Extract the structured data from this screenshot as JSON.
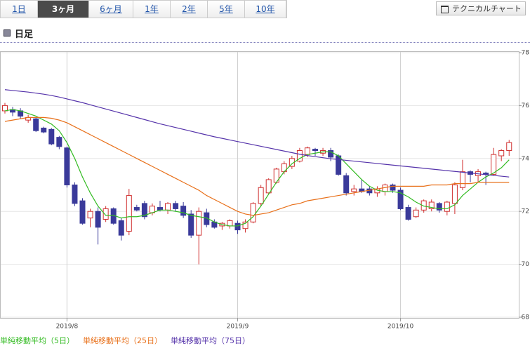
{
  "tabs": [
    "1日",
    "3ヶ月",
    "6ヶ月",
    "1年",
    "2年",
    "5年",
    "10年"
  ],
  "active_tab": 1,
  "button": "テクニカルチャート",
  "heading": "日足",
  "chart_data": {
    "type": "candlestick",
    "categories": [
      null,
      null,
      null,
      null,
      null,
      null,
      null,
      null,
      "2019/8",
      null,
      null,
      null,
      null,
      null,
      null,
      null,
      null,
      null,
      null,
      null,
      null,
      null,
      null,
      null,
      null,
      null,
      null,
      null,
      null,
      null,
      "2019/9",
      null,
      null,
      null,
      null,
      null,
      null,
      null,
      null,
      null,
      null,
      null,
      null,
      null,
      null,
      null,
      null,
      null,
      null,
      null,
      null,
      "2019/10",
      null,
      null,
      null,
      null,
      null,
      null,
      null,
      null,
      null,
      null,
      null,
      null,
      null,
      null
    ],
    "open": [
      75.8,
      75.85,
      75.8,
      75.45,
      75.5,
      75.15,
      75.1,
      74.8,
      74.4,
      73.0,
      72.4,
      71.75,
      72.0,
      71.7,
      72.1,
      71.65,
      71.25,
      72.15,
      72.3,
      71.95,
      72.15,
      72.05,
      72.3,
      72.2,
      71.9,
      71.1,
      71.95,
      71.6,
      71.45,
      71.45,
      71.55,
      71.35,
      71.6,
      72.3,
      72.7,
      73.1,
      73.5,
      73.7,
      73.9,
      74.15,
      74.35,
      74.2,
      74.3,
      74.1,
      73.35,
      72.75,
      72.85,
      72.85,
      72.7,
      72.75,
      73.0,
      72.8,
      72.15,
      71.8,
      72.05,
      72.1,
      72.3,
      72.0,
      72.3,
      72.9,
      73.5,
      73.35,
      73.45,
      73.4,
      74.1,
      74.3
    ],
    "high": [
      76.1,
      75.95,
      75.9,
      75.65,
      75.55,
      75.2,
      75.15,
      74.85,
      74.45,
      73.1,
      72.5,
      72.1,
      72.15,
      72.2,
      72.15,
      71.75,
      72.85,
      72.25,
      72.4,
      72.3,
      72.4,
      72.35,
      72.4,
      72.35,
      72.05,
      72.15,
      72.1,
      71.7,
      71.6,
      71.7,
      71.65,
      71.7,
      72.35,
      73.0,
      73.25,
      73.65,
      73.9,
      74.1,
      74.4,
      74.45,
      74.4,
      74.4,
      74.4,
      74.15,
      73.45,
      73.0,
      73.2,
      72.95,
      72.95,
      73.05,
      73.05,
      72.9,
      72.25,
      72.15,
      72.45,
      72.45,
      72.35,
      72.4,
      73.1,
      73.95,
      73.55,
      73.6,
      73.5,
      74.4,
      74.35,
      74.7
    ],
    "low": [
      75.7,
      75.6,
      75.5,
      75.35,
      75.0,
      74.95,
      74.5,
      74.35,
      72.9,
      72.2,
      71.5,
      71.4,
      70.75,
      71.6,
      71.5,
      70.9,
      71.1,
      72.0,
      71.7,
      71.85,
      72.0,
      71.9,
      72.0,
      71.75,
      71.0,
      70.0,
      71.4,
      71.35,
      71.3,
      71.35,
      71.15,
      71.2,
      71.55,
      72.2,
      72.65,
      73.05,
      73.4,
      73.6,
      73.85,
      74.05,
      74.1,
      74.1,
      73.9,
      73.35,
      72.6,
      72.6,
      72.7,
      72.6,
      72.55,
      72.6,
      72.7,
      72.05,
      71.65,
      71.75,
      71.95,
      72.0,
      71.95,
      71.85,
      71.9,
      72.8,
      73.1,
      73.1,
      73.0,
      73.35,
      73.9,
      74.1
    ],
    "close": [
      76.0,
      75.75,
      75.6,
      75.55,
      75.05,
      75.0,
      74.55,
      74.45,
      73.0,
      72.3,
      71.55,
      72.0,
      71.4,
      72.1,
      71.55,
      71.1,
      72.6,
      72.05,
      71.8,
      72.2,
      72.05,
      72.3,
      72.1,
      71.85,
      71.1,
      72.0,
      71.5,
      71.4,
      71.55,
      71.65,
      71.3,
      71.6,
      72.3,
      72.9,
      73.2,
      73.6,
      73.8,
      74.0,
      74.3,
      74.4,
      74.3,
      74.3,
      74.05,
      73.4,
      72.7,
      72.85,
      72.75,
      72.7,
      72.85,
      73.0,
      72.8,
      72.1,
      71.7,
      72.05,
      72.4,
      72.35,
      72.05,
      72.35,
      73.0,
      73.5,
      73.4,
      73.5,
      73.4,
      74.15,
      74.3,
      74.6
    ],
    "up_color": "#d03030",
    "down_color": "#3a3a9a",
    "series": [
      {
        "name": "単純移動平均（5日）",
        "color": "#33bb22",
        "values": [
          75.8,
          75.85,
          75.8,
          75.7,
          75.6,
          75.45,
          75.3,
          75.05,
          74.6,
          74.0,
          73.3,
          72.7,
          72.2,
          71.85,
          71.85,
          71.75,
          71.8,
          71.8,
          71.85,
          71.95,
          72.05,
          72.05,
          72.0,
          71.95,
          71.85,
          71.8,
          71.75,
          71.6,
          71.5,
          71.45,
          71.45,
          71.55,
          71.8,
          72.2,
          72.65,
          73.1,
          73.5,
          73.8,
          74.0,
          74.15,
          74.2,
          74.25,
          74.25,
          74.1,
          73.8,
          73.5,
          73.2,
          72.95,
          72.8,
          72.75,
          72.75,
          72.7,
          72.55,
          72.35,
          72.2,
          72.15,
          72.1,
          72.1,
          72.25,
          72.6,
          72.85,
          73.1,
          73.3,
          73.45,
          73.65,
          73.95
        ]
      },
      {
        "name": "単純移動平均（25日）",
        "color": "#e8701a",
        "values": [
          75.4,
          75.45,
          75.5,
          75.55,
          75.55,
          75.55,
          75.52,
          75.45,
          75.35,
          75.2,
          75.05,
          74.9,
          74.75,
          74.6,
          74.45,
          74.3,
          74.15,
          74.0,
          73.85,
          73.7,
          73.55,
          73.4,
          73.25,
          73.1,
          72.95,
          72.8,
          72.6,
          72.45,
          72.3,
          72.15,
          72.0,
          71.9,
          71.85,
          71.9,
          71.95,
          72.05,
          72.15,
          72.25,
          72.3,
          72.4,
          72.45,
          72.5,
          72.55,
          72.6,
          72.65,
          72.7,
          72.75,
          72.8,
          72.85,
          72.9,
          72.95,
          72.95,
          72.95,
          72.95,
          72.95,
          73.0,
          73.0,
          73.0,
          73.05,
          73.05,
          73.05,
          73.1,
          73.1,
          73.1,
          73.1,
          73.1
        ]
      },
      {
        "name": "単純移動平均（75日）",
        "color": "#5533aa",
        "values": [
          76.6,
          76.57,
          76.54,
          76.51,
          76.47,
          76.43,
          76.38,
          76.32,
          76.25,
          76.18,
          76.11,
          76.03,
          75.95,
          75.87,
          75.79,
          75.71,
          75.63,
          75.55,
          75.47,
          75.39,
          75.31,
          75.24,
          75.17,
          75.1,
          75.03,
          74.96,
          74.89,
          74.82,
          74.76,
          74.7,
          74.64,
          74.58,
          74.52,
          74.46,
          74.4,
          74.34,
          74.28,
          74.22,
          74.16,
          74.11,
          74.07,
          74.03,
          73.99,
          73.96,
          73.93,
          73.9,
          73.87,
          73.84,
          73.81,
          73.78,
          73.75,
          73.72,
          73.69,
          73.66,
          73.63,
          73.6,
          73.57,
          73.54,
          73.51,
          73.48,
          73.45,
          73.42,
          73.39,
          73.36,
          73.33,
          73.3
        ]
      }
    ],
    "ylim": [
      68,
      78
    ],
    "yticks": [
      68,
      70,
      72,
      74,
      76,
      78
    ],
    "grid": true
  }
}
